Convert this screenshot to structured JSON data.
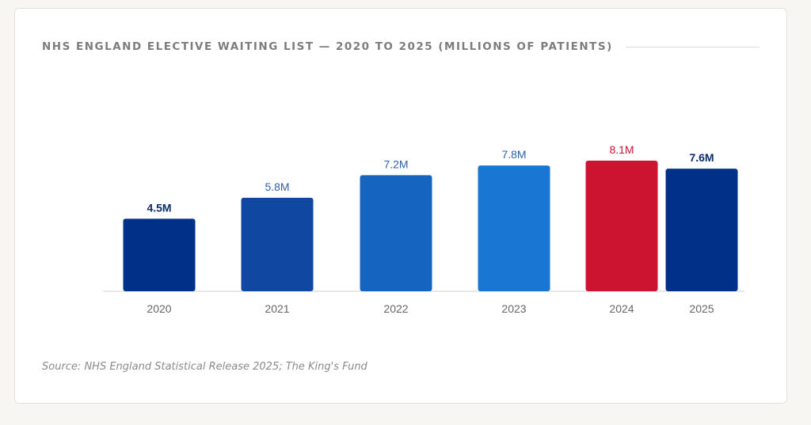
{
  "title": "NHS ENGLAND ELECTIVE WAITING LIST — 2020 TO 2025 (MILLIONS OF PATIENTS)",
  "source": "Source: NHS England Statistical Release 2025; The King's Fund",
  "chart_data": {
    "type": "bar",
    "title": "NHS ENGLAND ELECTIVE WAITING LIST — 2020 TO 2025 (MILLIONS OF PATIENTS)",
    "xlabel": "",
    "ylabel": "",
    "ylim": [
      0,
      8.1
    ],
    "categories": [
      "2020",
      "2021",
      "2022",
      "2023",
      "2024",
      "2025"
    ],
    "values": [
      4.5,
      5.8,
      7.2,
      7.8,
      8.1,
      7.6
    ],
    "value_labels": [
      "4.5M",
      "5.8M",
      "7.2M",
      "7.8M",
      "8.1M",
      "7.6M"
    ],
    "bar_colors": [
      "#003087",
      "#0f47a1",
      "#1565c0",
      "#1976d2",
      "#cc1431",
      "#003087"
    ],
    "label_colors": [
      "#0b2e6b",
      "#2f5fa8",
      "#2f5fa8",
      "#2f5fa8",
      "#cc1431",
      "#0b2e6b"
    ],
    "label_bold": [
      true,
      false,
      false,
      false,
      false,
      true
    ],
    "axis_color": "#e0e0e0",
    "tick_color": "#666666"
  }
}
